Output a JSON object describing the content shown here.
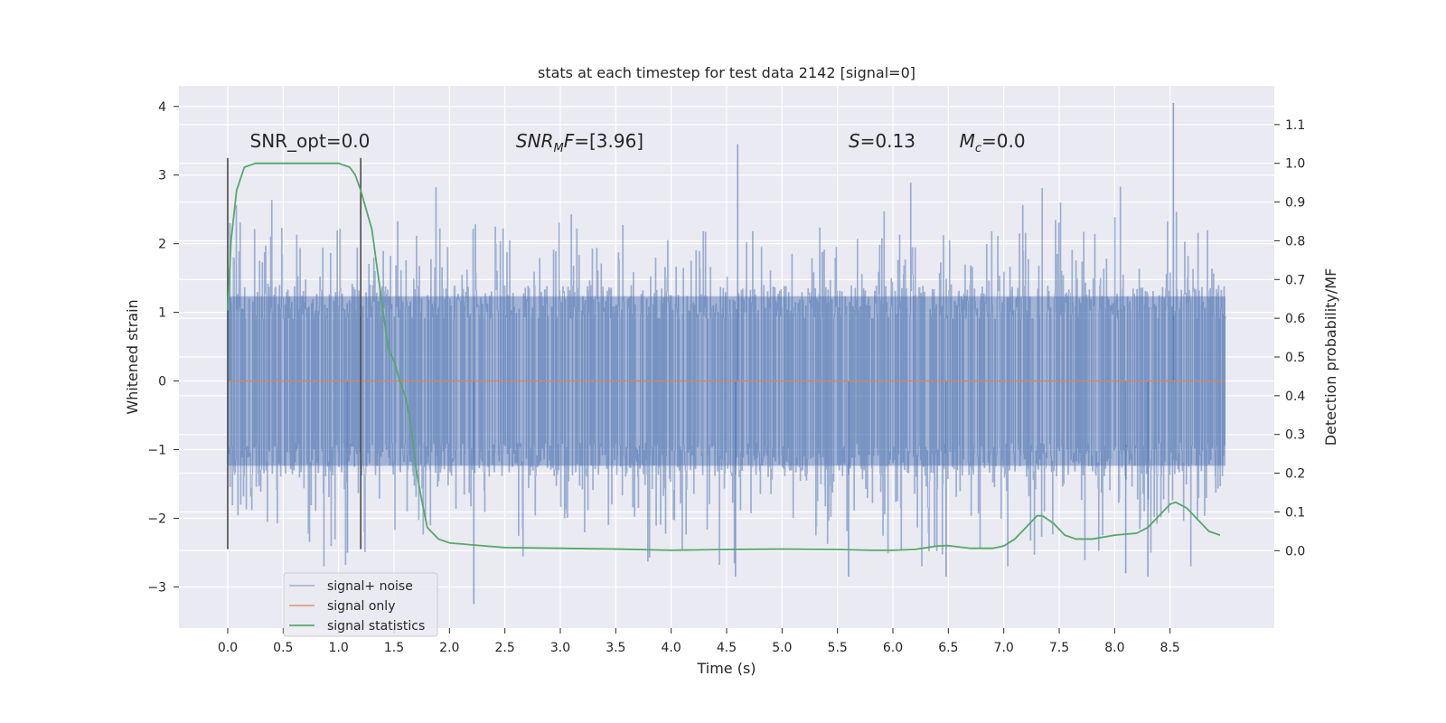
{
  "chart_data": {
    "type": "line",
    "title": "stats at each timestep for test data 2142 [signal=0]",
    "xlabel": "Time (s)",
    "ylabel_left": "Whitened strain",
    "ylabel_right": "Detection probability/MF",
    "xlim": [
      -0.44,
      9.44
    ],
    "ylim_left": [
      -3.6,
      4.3
    ],
    "ylim_right": [
      -0.2,
      1.2
    ],
    "xticks": [
      "0.0",
      "0.5",
      "1.0",
      "1.5",
      "2.0",
      "2.5",
      "3.0",
      "3.5",
      "4.0",
      "4.5",
      "5.0",
      "5.5",
      "6.0",
      "6.5",
      "7.0",
      "7.5",
      "8.0",
      "8.5"
    ],
    "yticks_left": [
      "4",
      "3",
      "2",
      "1",
      "0",
      "−1",
      "−2",
      "−3"
    ],
    "yticks_right": [
      "1.1",
      "1.0",
      "0.9",
      "0.8",
      "0.7",
      "0.6",
      "0.5",
      "0.4",
      "0.3",
      "0.2",
      "0.1",
      "0.0"
    ],
    "grid": true,
    "legend_position": "lower-left",
    "colors": {
      "background": "#eaeaf2",
      "grid": "#ffffff",
      "signal_noise": "#4c72b0",
      "signal_only": "#dd8452",
      "signal_statistics": "#55a868",
      "vline": "#4a4a4a"
    },
    "annotations": [
      {
        "label_html": "SNR_opt=0.0",
        "x": 0.2
      },
      {
        "label_html": "<tspan font-style='italic'>SNR</tspan><tspan font-style='italic' font-size='13' dy='5'>M</tspan><tspan font-style='italic' dy='-5'>F</tspan>=[3.96]",
        "x": 2.6
      },
      {
        "label_html": "<tspan font-style='italic'>S</tspan>=0.13",
        "x": 5.6
      },
      {
        "label_html": "<tspan font-style='italic'>M</tspan><tspan font-style='italic' font-size='13' dy='5'>c</tspan><tspan dy='-5'>=0.0</tspan>",
        "x": 6.6
      }
    ],
    "annotation_y": 3.3,
    "vlines": [
      {
        "x": 0.0,
        "y0": -2.45,
        "y1": 3.25
      },
      {
        "x": 1.2,
        "y0": -2.45,
        "y1": 3.25
      }
    ],
    "series": [
      {
        "name": "signal+ noise",
        "kind": "noise",
        "x_range": [
          0.0,
          9.0
        ],
        "envelope": {
          "dense": [
            -1.3,
            1.3
          ],
          "spike_max": [
            -3.3,
            4.05
          ]
        },
        "notable_spikes": [
          {
            "x": 0.02,
            "y": 2.3
          },
          {
            "x": 1.08,
            "y": -2.5
          },
          {
            "x": 2.22,
            "y": -3.25
          },
          {
            "x": 4.6,
            "y": 3.45
          },
          {
            "x": 4.58,
            "y": -2.85
          },
          {
            "x": 5.6,
            "y": -2.85
          },
          {
            "x": 6.48,
            "y": -2.85
          },
          {
            "x": 8.53,
            "y": 4.05
          },
          {
            "x": 8.1,
            "y": -2.8
          },
          {
            "x": 8.3,
            "y": -2.85
          }
        ]
      },
      {
        "name": "signal only",
        "kind": "flat",
        "x": [
          0.0,
          9.0
        ],
        "y": [
          0.0,
          0.0
        ]
      },
      {
        "name": "signal statistics",
        "kind": "line",
        "axis": "right",
        "x": [
          0.0,
          0.03,
          0.08,
          0.15,
          0.25,
          0.5,
          0.9,
          1.0,
          1.05,
          1.1,
          1.15,
          1.2,
          1.3,
          1.4,
          1.45,
          1.5,
          1.55,
          1.6,
          1.65,
          1.7,
          1.75,
          1.8,
          1.9,
          2.0,
          2.2,
          2.5,
          3.0,
          3.5,
          4.0,
          4.5,
          5.0,
          5.5,
          5.8,
          6.0,
          6.2,
          6.4,
          6.5,
          6.7,
          6.9,
          7.0,
          7.1,
          7.2,
          7.3,
          7.35,
          7.45,
          7.55,
          7.65,
          7.8,
          8.0,
          8.2,
          8.3,
          8.4,
          8.5,
          8.55,
          8.65,
          8.75,
          8.85,
          8.95
        ],
        "y": [
          0.62,
          0.8,
          0.93,
          0.99,
          1.0,
          1.0,
          1.0,
          1.0,
          0.995,
          0.99,
          0.97,
          0.93,
          0.83,
          0.62,
          0.52,
          0.49,
          0.44,
          0.4,
          0.33,
          0.21,
          0.13,
          0.06,
          0.03,
          0.02,
          0.015,
          0.008,
          0.006,
          0.004,
          0.001,
          0.003,
          0.004,
          0.003,
          0.001,
          0.001,
          0.003,
          0.012,
          0.013,
          0.006,
          0.006,
          0.012,
          0.03,
          0.06,
          0.09,
          0.09,
          0.07,
          0.04,
          0.03,
          0.03,
          0.04,
          0.045,
          0.06,
          0.09,
          0.12,
          0.125,
          0.11,
          0.08,
          0.05,
          0.04
        ]
      }
    ],
    "legend": [
      {
        "label": "signal+ noise",
        "color_key": "signal_noise"
      },
      {
        "label": "signal only",
        "color_key": "signal_only"
      },
      {
        "label": "signal statistics",
        "color_key": "signal_statistics"
      }
    ]
  }
}
